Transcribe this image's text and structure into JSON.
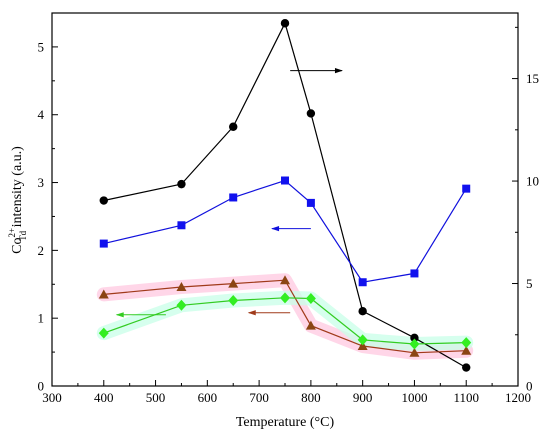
{
  "chart_data": {
    "type": "line",
    "xlabel": "Temperature (°C)",
    "ylabel": {
      "base": "Co",
      "superscript": "2+",
      "subscript": "Td",
      "rest": " intensity (a.u.)"
    },
    "x_ticks": [
      "300",
      "400",
      "500",
      "600",
      "700",
      "800",
      "900",
      "1000",
      "1100",
      "1200"
    ],
    "y_left_ticks": [
      "0",
      "1",
      "2",
      "3",
      "4",
      "5"
    ],
    "y_right_ticks": [
      "0",
      "5",
      "10",
      "15"
    ],
    "xlim": [
      300,
      1200
    ],
    "ylim_left": [
      0,
      5.5
    ],
    "ylim_right": [
      0,
      18.2
    ],
    "grid": false,
    "series": [
      {
        "axis": "right",
        "marker": "circle",
        "color": "#000000",
        "fill": "#000000",
        "x": [
          400,
          550,
          650,
          750,
          800,
          900,
          1000,
          1100
        ],
        "y": [
          9.05,
          9.85,
          12.65,
          17.7,
          13.3,
          3.65,
          2.35,
          0.9
        ]
      },
      {
        "axis": "left",
        "marker": "square",
        "color": "#1111dd",
        "fill": "#1111ee",
        "x": [
          400,
          550,
          650,
          750,
          800,
          900,
          1000,
          1100
        ],
        "y": [
          2.1,
          2.37,
          2.78,
          3.03,
          2.7,
          1.53,
          1.66,
          2.91
        ]
      },
      {
        "axis": "left",
        "marker": "triangle",
        "color": "#a03a1a",
        "fill": "#8b4513",
        "highlight": "#ffc8e0",
        "x": [
          400,
          550,
          650,
          750,
          800,
          900,
          1000,
          1100
        ],
        "y": [
          1.35,
          1.46,
          1.51,
          1.56,
          0.89,
          0.59,
          0.49,
          0.52
        ]
      },
      {
        "axis": "left",
        "marker": "diamond",
        "color": "#33cc22",
        "fill": "#33ee22",
        "highlight": "#c8ffe8",
        "x": [
          400,
          550,
          650,
          750,
          800,
          900,
          1000,
          1100
        ],
        "y": [
          0.78,
          1.19,
          1.26,
          1.3,
          1.29,
          0.68,
          0.62,
          0.64
        ]
      }
    ],
    "arrows": [
      {
        "series_index": 0,
        "direction": "right",
        "x_from": 760,
        "x_to": 860,
        "y": 4.65,
        "axis": "left",
        "color": "#000000"
      },
      {
        "series_index": 1,
        "direction": "left",
        "x_from": 800,
        "x_to": 725,
        "y": 2.32,
        "axis": "left",
        "color": "#1111dd"
      },
      {
        "series_index": 2,
        "direction": "left",
        "x_from": 760,
        "x_to": 680,
        "y": 1.08,
        "axis": "left",
        "color": "#a03a1a"
      },
      {
        "series_index": 3,
        "direction": "left",
        "x_from": 520,
        "x_to": 425,
        "y": 1.05,
        "axis": "left",
        "color": "#33cc22"
      }
    ]
  }
}
